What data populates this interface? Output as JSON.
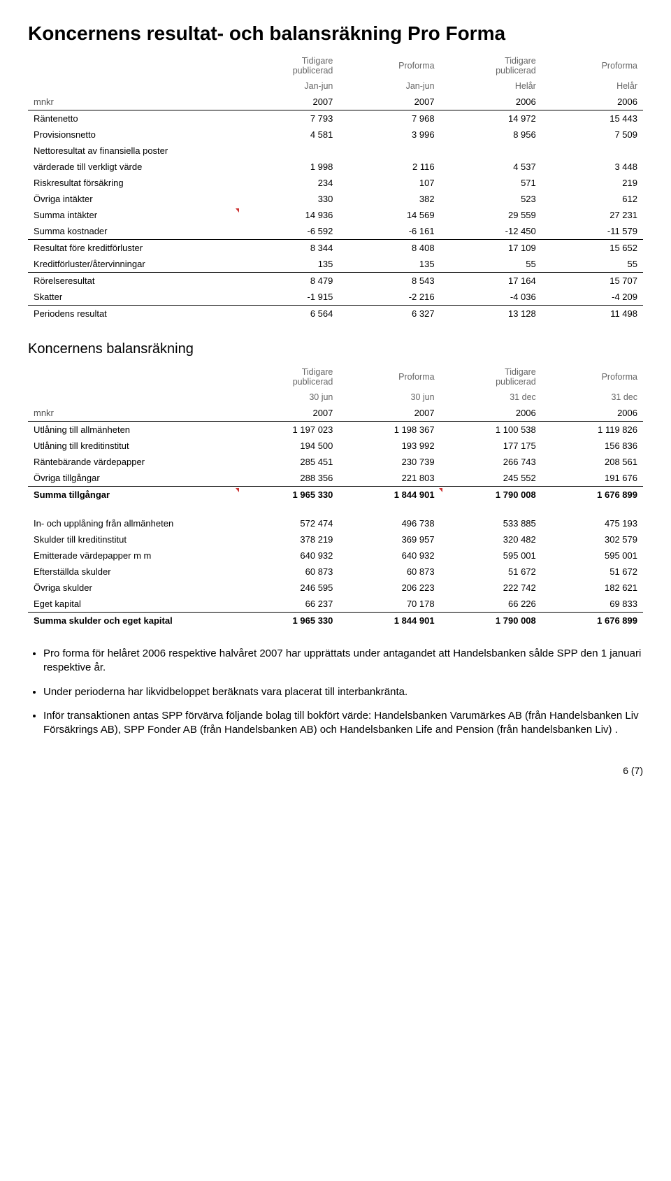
{
  "title": "Koncernens resultat- och balansräkning Pro Forma",
  "income": {
    "hdr1": [
      "",
      "Tidigare publicerad",
      "Proforma",
      "Tidigare publicerad",
      "Proforma"
    ],
    "hdr2": [
      "",
      "Jan-jun",
      "Jan-jun",
      "Helår",
      "Helår"
    ],
    "mnkr": [
      "mnkr",
      "2007",
      "2007",
      "2006",
      "2006"
    ],
    "rows": [
      {
        "label": "Räntenetto",
        "v": [
          "7 793",
          "7 968",
          "14 972",
          "15 443"
        ]
      },
      {
        "label": "Provisionsnetto",
        "v": [
          "4 581",
          "3 996",
          "8 956",
          "7 509"
        ]
      },
      {
        "label": "Nettoresultat av finansiella poster",
        "v": [
          "",
          "",
          "",
          ""
        ]
      },
      {
        "label": "  värderade till verkligt värde",
        "v": [
          "1 998",
          "2 116",
          "4 537",
          "3 448"
        ]
      },
      {
        "label": "Riskresultat försäkring",
        "v": [
          "234",
          "107",
          "571",
          "219"
        ]
      },
      {
        "label": "Övriga intäkter",
        "v": [
          "330",
          "382",
          "523",
          "612"
        ]
      },
      {
        "label": "Summa intäkter",
        "v": [
          "14 936",
          "14 569",
          "29 559",
          "27 231"
        ],
        "tick": true
      },
      {
        "label": "Summa kostnader",
        "v": [
          "-6 592",
          "-6 161",
          "-12 450",
          "-11 579"
        ]
      },
      {
        "label": "Resultat före kreditförluster",
        "v": [
          "8 344",
          "8 408",
          "17 109",
          "15 652"
        ],
        "lineAbove": true
      },
      {
        "label": "Kreditförluster/återvinningar",
        "v": [
          "135",
          "135",
          "55",
          "55"
        ]
      },
      {
        "label": "Rörelseresultat",
        "v": [
          "8 479",
          "8 543",
          "17 164",
          "15 707"
        ],
        "lineAbove": true
      },
      {
        "label": "Skatter",
        "v": [
          "-1 915",
          "-2 216",
          "-4 036",
          "-4 209"
        ]
      },
      {
        "label": "Periodens resultat",
        "v": [
          "6 564",
          "6 327",
          "13 128",
          "11 498"
        ],
        "lineAbove": true
      }
    ]
  },
  "balance_title": "Koncernens balansräkning",
  "balance": {
    "hdr1": [
      "",
      "Tidigare publicerad",
      "Proforma",
      "Tidigare publicerad",
      "Proforma"
    ],
    "hdr2": [
      "",
      "30 jun",
      "30 jun",
      "31 dec",
      "31 dec"
    ],
    "mnkr": [
      "mnkr",
      "2007",
      "2007",
      "2006",
      "2006"
    ],
    "rows": [
      {
        "label": "Utlåning till allmänheten",
        "v": [
          "1 197 023",
          "1 198 367",
          "1 100 538",
          "1 119 826"
        ]
      },
      {
        "label": "Utlåning till kreditinstitut",
        "v": [
          "194 500",
          "193 992",
          "177 175",
          "156 836"
        ]
      },
      {
        "label": "Räntebärande värdepapper",
        "v": [
          "285 451",
          "230 739",
          "266 743",
          "208 561"
        ]
      },
      {
        "label": "Övriga tillgångar",
        "v": [
          "288 356",
          "221 803",
          "245 552",
          "191 676"
        ]
      },
      {
        "label": "Summa tillgångar",
        "v": [
          "1 965 330",
          "1 844 901",
          "1 790 008",
          "1 676 899"
        ],
        "bold": true,
        "lineAbove": true,
        "tick": true,
        "tick3": true
      },
      {
        "label": "In- och upplåning från allmänheten",
        "v": [
          "572 474",
          "496 738",
          "533 885",
          "475 193"
        ],
        "gapAbove": true
      },
      {
        "label": "Skulder till kreditinstitut",
        "v": [
          "378 219",
          "369 957",
          "320 482",
          "302 579"
        ]
      },
      {
        "label": "Emitterade värdepapper m m",
        "v": [
          "640 932",
          "640 932",
          "595 001",
          "595 001"
        ]
      },
      {
        "label": "Efterställda skulder",
        "v": [
          "60 873",
          "60 873",
          "51 672",
          "51 672"
        ]
      },
      {
        "label": "Övriga skulder",
        "v": [
          "246 595",
          "206 223",
          "222 742",
          "182 621"
        ]
      },
      {
        "label": "Eget kapital",
        "v": [
          "66 237",
          "70 178",
          "66 226",
          "69 833"
        ]
      },
      {
        "label": "Summa skulder och eget kapital",
        "v": [
          "1 965 330",
          "1 844 901",
          "1 790 008",
          "1 676 899"
        ],
        "bold": true,
        "lineAbove": true
      }
    ]
  },
  "bullets": [
    "Pro forma för helåret 2006 respektive halvåret 2007 har upprättats under antagandet att Handelsbanken sålde SPP den 1 januari respektive år.",
    "Under perioderna har likvidbeloppet beräknats vara placerat till interbankränta.",
    "Inför transaktionen antas SPP förvärva följande bolag till bokfört värde: Handelsbanken Varumärkes AB (från Handelsbanken Liv Försäkrings AB),  SPP Fonder AB (från Handelsbanken AB) och Handelsbanken Life and Pension (från handelsbanken Liv) ."
  ],
  "page": "6 (7)"
}
